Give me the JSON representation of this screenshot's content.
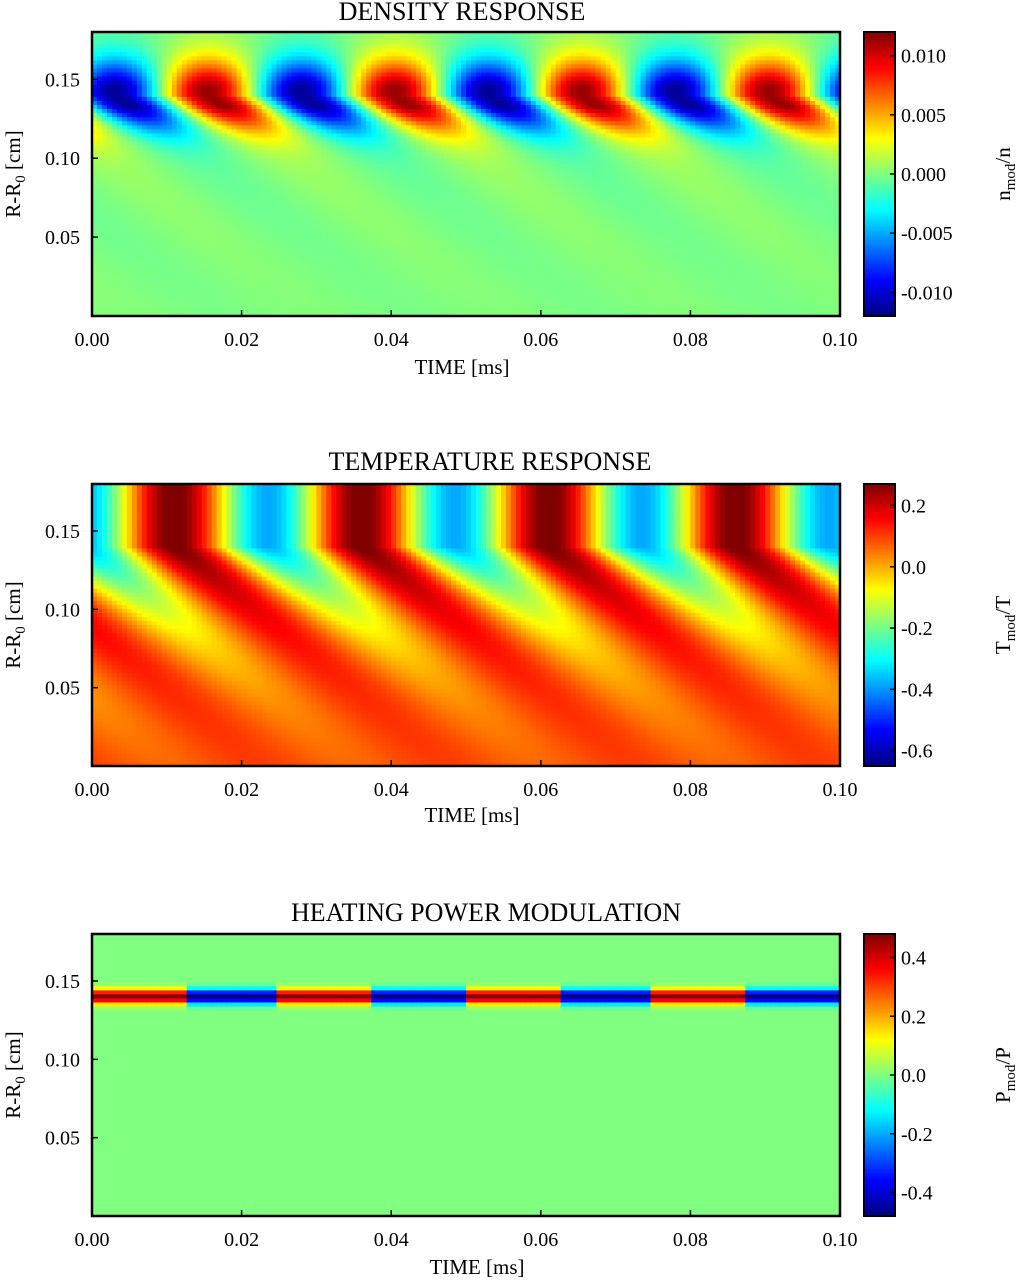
{
  "chart_data": [
    {
      "type": "heatmap",
      "title": "DENSITY RESPONSE",
      "xlabel": "TIME [ms]",
      "ylabel": {
        "main": "R-R",
        "sub": "0",
        "unit": " [cm]"
      },
      "xlim": [
        0.0,
        0.1
      ],
      "ylim": [
        0.0,
        0.18
      ],
      "xticks": [
        "0.00",
        "0.02",
        "0.04",
        "0.06",
        "0.08",
        "0.10"
      ],
      "yticks": [
        "0.05",
        "0.10",
        "0.15"
      ],
      "colorbar": {
        "label": {
          "main": "n",
          "sub": "mod",
          "tail": "/n"
        },
        "range": [
          -0.012,
          0.012
        ],
        "ticks": [
          "0.010",
          "0.005",
          "0.000",
          "-0.005",
          "-0.010"
        ]
      },
      "field": {
        "kind": "density",
        "amplitude": 0.012,
        "period_ms": 0.025,
        "source_radius_cm": 0.14,
        "first_min_ms": 0.003
      }
    },
    {
      "type": "heatmap",
      "title": "TEMPERATURE RESPONSE",
      "xlabel": "TIME [ms]",
      "ylabel": {
        "main": "R-R",
        "sub": "0",
        "unit": " [cm]"
      },
      "xlim": [
        0.0,
        0.1
      ],
      "ylim": [
        0.0,
        0.18
      ],
      "xticks": [
        "0.00",
        "0.02",
        "0.04",
        "0.06",
        "0.08",
        "0.10"
      ],
      "yticks": [
        "0.05",
        "0.10",
        "0.15"
      ],
      "colorbar": {
        "label": {
          "main": "T",
          "sub": "mod",
          "tail": "/T"
        },
        "range": [
          -0.65,
          0.27
        ],
        "ticks": [
          "0.2",
          "0.0",
          "-0.2",
          "-0.4",
          "-0.6"
        ]
      },
      "field": {
        "kind": "temperature",
        "period_ms": 0.025,
        "source_radius_cm": 0.14,
        "first_min_ms": 0.0
      }
    },
    {
      "type": "heatmap",
      "title": "HEATING POWER MODULATION",
      "xlabel": "TIME [ms]",
      "ylabel": {
        "main": "R-R",
        "sub": "0",
        "unit": " [cm]"
      },
      "xlim": [
        0.0,
        0.1
      ],
      "ylim": [
        0.0,
        0.18
      ],
      "xticks": [
        "0.00",
        "0.02",
        "0.04",
        "0.06",
        "0.08",
        "0.10"
      ],
      "yticks": [
        "0.05",
        "0.10",
        "0.15"
      ],
      "colorbar": {
        "label": {
          "main": "P",
          "sub": "mod",
          "tail": "/P"
        },
        "range": [
          -0.48,
          0.48
        ],
        "ticks": [
          "0.4",
          "0.2",
          "0.0",
          "-0.2",
          "-0.4"
        ]
      },
      "field": {
        "kind": "power",
        "amplitude": 0.48,
        "period_ms": 0.025,
        "source_radius_cm": 0.14,
        "band_width_cm": 0.01,
        "first_positive_start_ms": 0.0
      }
    }
  ],
  "colormap": "jet"
}
